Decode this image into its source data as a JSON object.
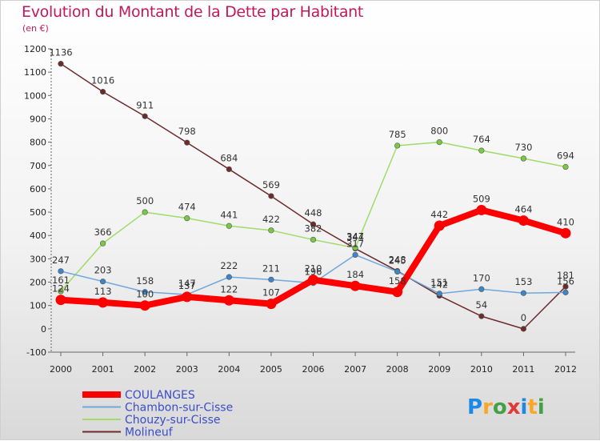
{
  "title": "Evolution du Montant de la Dette par Habitant",
  "subtitle": "(en €)",
  "logo": {
    "text": "Proxiti",
    "letters": [
      {
        "ch": "P",
        "color": "#1e88e5"
      },
      {
        "ch": "r",
        "color": "#f9a825"
      },
      {
        "ch": "o",
        "color": "#43a047"
      },
      {
        "ch": "x",
        "color": "#e53935"
      },
      {
        "ch": "i",
        "color": "#1e88e5"
      },
      {
        "ch": "t",
        "color": "#f9a825"
      },
      {
        "ch": "i",
        "color": "#43a047"
      }
    ]
  },
  "chart_data": {
    "type": "line",
    "title": "Evolution du Montant de la Dette par Habitant",
    "subtitle": "(en €)",
    "x": [
      "2000",
      "2001",
      "2002",
      "2003",
      "2004",
      "2005",
      "2006",
      "2007",
      "2008",
      "2009",
      "2010",
      "2011",
      "2012"
    ],
    "ylim": [
      -100,
      1200
    ],
    "yticks": [
      -100,
      0,
      100,
      200,
      300,
      400,
      500,
      600,
      700,
      800,
      900,
      1000,
      1100,
      1200
    ],
    "grid": false,
    "legend_position": "bottom-left",
    "series": [
      {
        "name": "COULANGES",
        "color": "#ff0000",
        "width": 8,
        "point_color": "#ff0000",
        "values": [
          124,
          113,
          100,
          137,
          122,
          107,
          210,
          184,
          158,
          442,
          509,
          464,
          410
        ]
      },
      {
        "name": "Chambon-sur-Cisse",
        "color": "#6fa8dc",
        "width": 1.5,
        "point_color": "#3d85c6",
        "values": [
          247,
          203,
          158,
          147,
          222,
          211,
          196,
          317,
          245,
          151,
          170,
          153,
          156
        ]
      },
      {
        "name": "Chouzy-sur-Cisse",
        "color": "#9fdc6a",
        "width": 1.5,
        "point_color": "#7ac943",
        "values": [
          161,
          366,
          500,
          474,
          441,
          422,
          382,
          347,
          785,
          800,
          764,
          730,
          694
        ]
      },
      {
        "name": "Molineuf",
        "color": "#6d2b2b",
        "width": 1.5,
        "point_color": "#6d2b2b",
        "values": [
          1136,
          1016,
          911,
          798,
          684,
          569,
          448,
          344,
          248,
          142,
          54,
          0,
          181
        ]
      }
    ]
  }
}
